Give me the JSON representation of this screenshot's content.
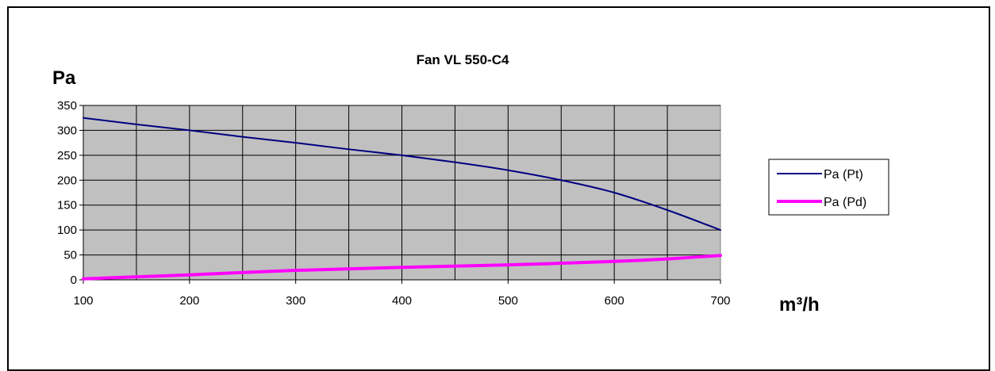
{
  "chart_data": {
    "type": "line",
    "title": "Fan VL 550-C4",
    "ylabel": "Pa",
    "xlabel": "m³/h",
    "xlim": [
      100,
      700
    ],
    "ylim": [
      0,
      350
    ],
    "x_ticks": [
      100,
      200,
      300,
      400,
      500,
      600,
      700
    ],
    "y_ticks": [
      0,
      50,
      100,
      150,
      200,
      250,
      300,
      350
    ],
    "grid": true,
    "plot_background": "#c0c0c0",
    "legend_position": "right",
    "series": [
      {
        "name": "Pa (Pt)",
        "color": "#000080",
        "x": [
          100,
          150,
          200,
          250,
          300,
          350,
          400,
          450,
          500,
          550,
          600,
          650,
          700
        ],
        "y": [
          325,
          312,
          300,
          287,
          275,
          262,
          250,
          236,
          220,
          200,
          175,
          140,
          100
        ]
      },
      {
        "name": "Pa (Pd)",
        "color": "#ff00ff",
        "x": [
          100,
          200,
          300,
          400,
          500,
          600,
          650,
          700
        ],
        "y": [
          2,
          10,
          19,
          25,
          30,
          37,
          42,
          49
        ]
      }
    ]
  }
}
